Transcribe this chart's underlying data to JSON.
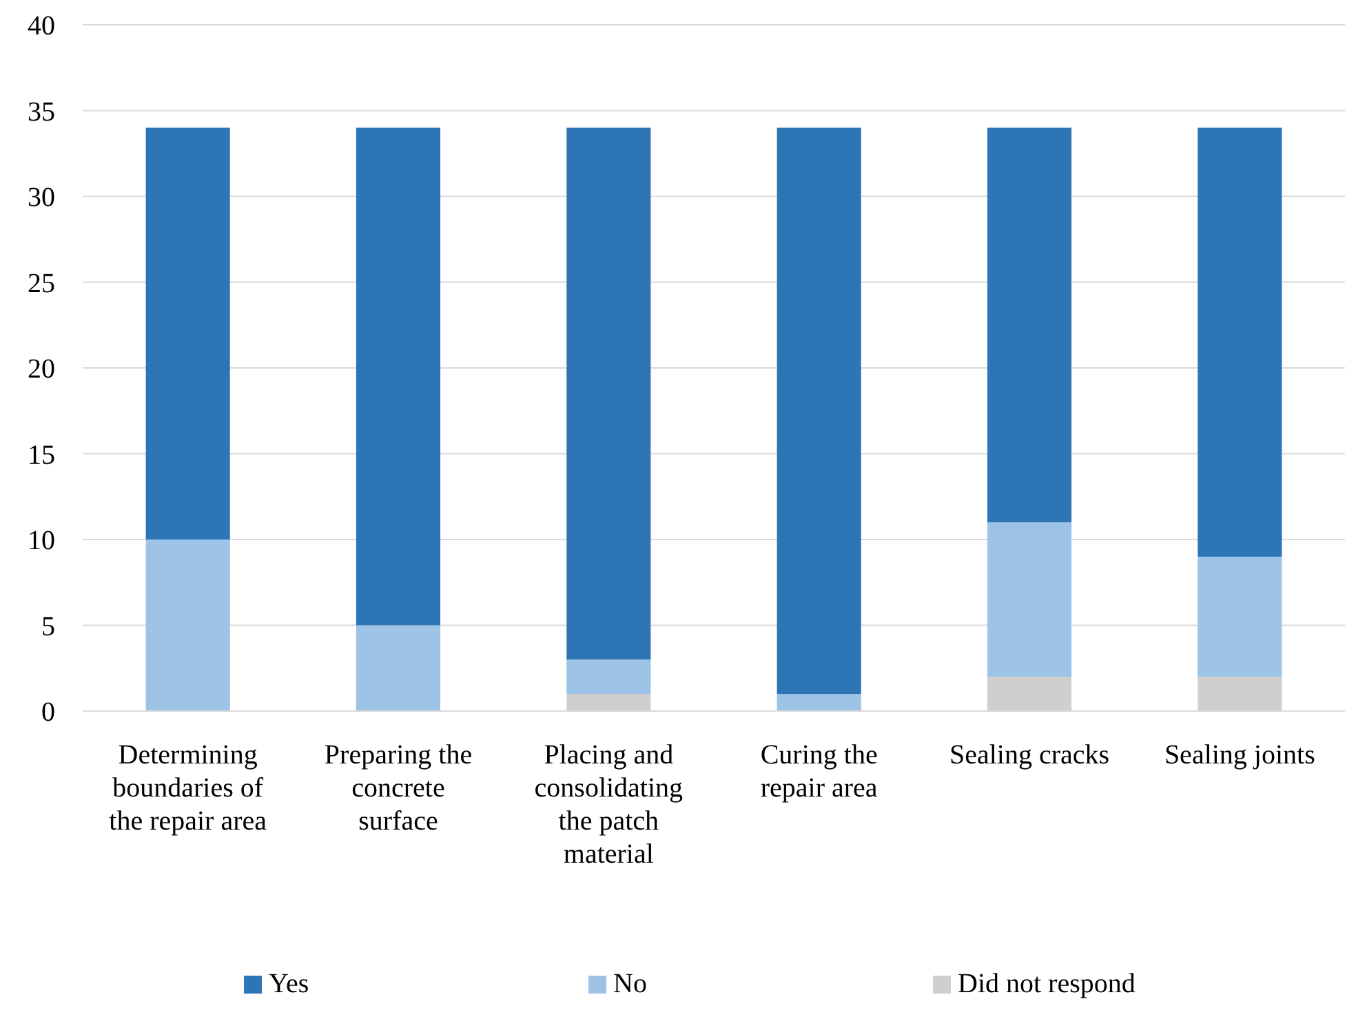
{
  "chart_data": {
    "type": "bar",
    "stacked": true,
    "categories": [
      "Determining boundaries of the repair area",
      "Preparing the concrete surface",
      "Placing and consolidating the patch material",
      "Curing the repair area",
      "Sealing cracks",
      "Sealing joints"
    ],
    "series": [
      {
        "name": "Did not respond",
        "color": "#d0cece",
        "values": [
          0,
          0,
          1,
          0,
          2,
          2
        ]
      },
      {
        "name": "No",
        "color": "#9dc3e6",
        "values": [
          10,
          5,
          2,
          1,
          9,
          7
        ]
      },
      {
        "name": "Yes",
        "color": "#2e75b6",
        "values": [
          24,
          29,
          31,
          33,
          23,
          25
        ]
      }
    ],
    "ylim": [
      0,
      40
    ],
    "yticks": [
      0,
      5,
      10,
      15,
      20,
      25,
      30,
      35,
      40
    ],
    "grid": "y",
    "legend": "bottom"
  }
}
